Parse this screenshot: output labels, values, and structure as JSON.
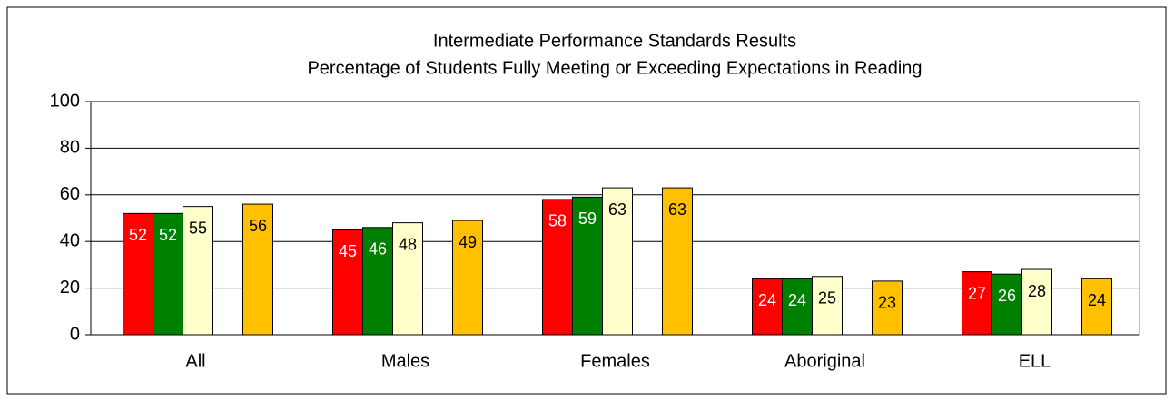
{
  "chart_data": {
    "type": "bar",
    "title": "Intermediate Performance Standards Results",
    "subtitle": "Percentage of Students Fully Meeting or Exceeding Expectations in Reading",
    "categories": [
      "All",
      "Males",
      "Females",
      "Aboriginal",
      "ELL"
    ],
    "series": [
      {
        "color": "#ff0000",
        "values": [
          52,
          45,
          58,
          24,
          27
        ]
      },
      {
        "color": "#008000",
        "values": [
          52,
          46,
          59,
          24,
          26
        ]
      },
      {
        "color": "#ffffcc",
        "values": [
          55,
          48,
          63,
          25,
          28
        ]
      },
      {
        "color": "#ffc000",
        "values": [
          56,
          49,
          63,
          23,
          24
        ]
      }
    ],
    "ylim": [
      0,
      100
    ],
    "yticks": [
      0,
      20,
      40,
      60,
      80,
      100
    ],
    "grid": true
  }
}
